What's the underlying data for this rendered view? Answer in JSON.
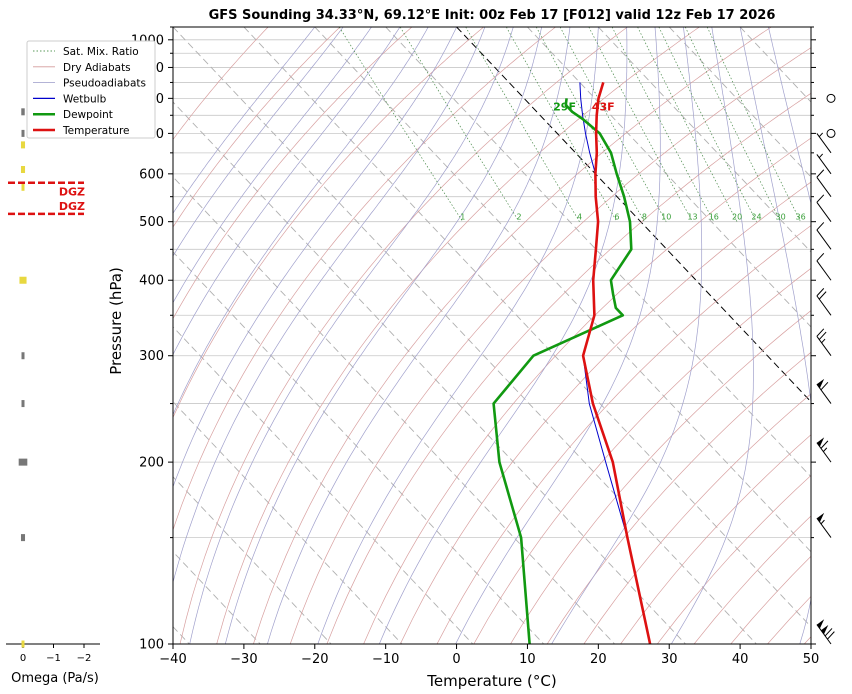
{
  "chart_data": {
    "type": "skew-t",
    "title": "GFS Sounding 34.33°N, 69.12°E Init: 00z Feb 17 [F012] valid 12z Feb 17 2026",
    "xlabel": "Temperature (°C)",
    "ylabel": "Pressure (hPa)",
    "xlim": [
      -40,
      50
    ],
    "ylim": [
      1050,
      100
    ],
    "x_ticks": [
      -40,
      -30,
      -20,
      -10,
      0,
      10,
      20,
      30,
      40,
      50
    ],
    "x_tick_labels": [
      "−40",
      "−30",
      "−20",
      "−10",
      "0",
      "10",
      "20",
      "30",
      "40",
      "50"
    ],
    "y_ticks": [
      100,
      200,
      300,
      400,
      500,
      600,
      700,
      800,
      900,
      1000
    ],
    "y_tick_labels": [
      "100",
      "200",
      "300",
      "400",
      "500",
      "600",
      "700",
      "800",
      "900",
      "1000"
    ],
    "legend": {
      "placement": "top-left",
      "entries": [
        {
          "label": "Sat. Mix. Ratio",
          "color": "#5a9a5a",
          "style": "dotted"
        },
        {
          "label": "Dry Adiabats",
          "color": "#d49a9a",
          "style": "solid-thin"
        },
        {
          "label": "Pseudoadiabats",
          "color": "#9a9ac8",
          "style": "solid-thin"
        },
        {
          "label": "Wetbulb",
          "color": "#0000cc",
          "style": "solid"
        },
        {
          "label": "Dewpoint",
          "color": "#119911",
          "style": "solid-thick"
        },
        {
          "label": "Temperature",
          "color": "#dd1111",
          "style": "solid-thick"
        }
      ]
    },
    "series": [
      {
        "name": "Temperature",
        "color": "#dd1111",
        "points": [
          [
            850,
            13.3
          ],
          [
            800,
            10.5
          ],
          [
            750,
            8
          ],
          [
            700,
            5.5
          ],
          [
            650,
            3
          ],
          [
            600,
            0
          ],
          [
            550,
            -3
          ],
          [
            500,
            -6
          ],
          [
            450,
            -10
          ],
          [
            400,
            -14.5
          ],
          [
            350,
            -19
          ],
          [
            300,
            -26
          ],
          [
            250,
            -31
          ],
          [
            200,
            -36
          ],
          [
            150,
            -44
          ],
          [
            100,
            -55
          ]
        ]
      },
      {
        "name": "Dewpoint",
        "color": "#119911",
        "points": [
          [
            800,
            6
          ],
          [
            780,
            5
          ],
          [
            760,
            5
          ],
          [
            740,
            5.5
          ],
          [
            700,
            6
          ],
          [
            650,
            5
          ],
          [
            600,
            3
          ],
          [
            550,
            1
          ],
          [
            500,
            -1.5
          ],
          [
            450,
            -5
          ],
          [
            400,
            -12
          ],
          [
            380,
            -13.5
          ],
          [
            360,
            -15
          ],
          [
            350,
            -15
          ],
          [
            300,
            -33
          ],
          [
            250,
            -45
          ],
          [
            200,
            -52
          ],
          [
            150,
            -59
          ],
          [
            100,
            -72
          ]
        ]
      },
      {
        "name": "Wetbulb",
        "color": "#0000cc",
        "points": [
          [
            850,
            10
          ],
          [
            800,
            8
          ],
          [
            750,
            6
          ],
          [
            700,
            4
          ],
          [
            650,
            2
          ],
          [
            600,
            0
          ],
          [
            550,
            -3
          ],
          [
            500,
            -6
          ],
          [
            450,
            -10
          ],
          [
            400,
            -14.5
          ],
          [
            350,
            -19
          ],
          [
            300,
            -26
          ],
          [
            250,
            -31.5
          ],
          [
            200,
            -37
          ],
          [
            150,
            -44
          ],
          [
            100,
            -55
          ]
        ]
      }
    ],
    "surface_labels": {
      "temperature": "43F",
      "dewpoint": "29F"
    },
    "mixing_ratio_labels": [
      "1",
      "2",
      "4",
      "6",
      "8",
      "10",
      "13",
      "16",
      "20",
      "24",
      "30",
      "36"
    ],
    "mixing_ratio_values": [
      1,
      2,
      4,
      6,
      8,
      10,
      13,
      16,
      20,
      24,
      30,
      36
    ],
    "mixing_ratio_label_pressure": 500,
    "freezing_isotherm": 0,
    "wind_barbs": [
      {
        "p": 100,
        "speed": 120
      },
      {
        "p": 150,
        "speed": 55
      },
      {
        "p": 200,
        "speed": 65
      },
      {
        "p": 250,
        "speed": 60
      },
      {
        "p": 300,
        "speed": 25
      },
      {
        "p": 350,
        "speed": 20
      },
      {
        "p": 400,
        "speed": 10
      },
      {
        "p": 450,
        "speed": 10
      },
      {
        "p": 500,
        "speed": 10
      },
      {
        "p": 550,
        "speed": 10
      },
      {
        "p": 600,
        "speed": 5
      },
      {
        "p": 650,
        "speed": 5
      },
      {
        "p": 700,
        "speed": 0
      },
      {
        "p": 800,
        "speed": 0
      }
    ],
    "omega": {
      "xlabel": "Omega (Pa/s)",
      "x_ticks": [
        0,
        -1,
        -2
      ],
      "x_tick_labels": [
        "0",
        "−1",
        "−2"
      ],
      "values": [
        {
          "p": 100,
          "v": 0.05,
          "color": "#e8d840"
        },
        {
          "p": 150,
          "v": 0.1,
          "color": "#777777"
        },
        {
          "p": 200,
          "v": 0.25,
          "color": "#777777"
        },
        {
          "p": 250,
          "v": 0.05,
          "color": "#777777"
        },
        {
          "p": 300,
          "v": 0.05,
          "color": "#777777"
        },
        {
          "p": 400,
          "v": 0.2,
          "color": "#e8d840"
        },
        {
          "p": 570,
          "v": 0.05,
          "color": "#e8d840"
        },
        {
          "p": 610,
          "v": 0.1,
          "color": "#e8d840"
        },
        {
          "p": 670,
          "v": 0.1,
          "color": "#e8d840"
        },
        {
          "p": 700,
          "v": 0.05,
          "color": "#777777"
        },
        {
          "p": 760,
          "v": 0.08,
          "color": "#777777"
        }
      ],
      "dgz": {
        "label": "DGZ",
        "top_p": 515,
        "bottom_p": 580,
        "color": "#dd1111"
      }
    }
  }
}
